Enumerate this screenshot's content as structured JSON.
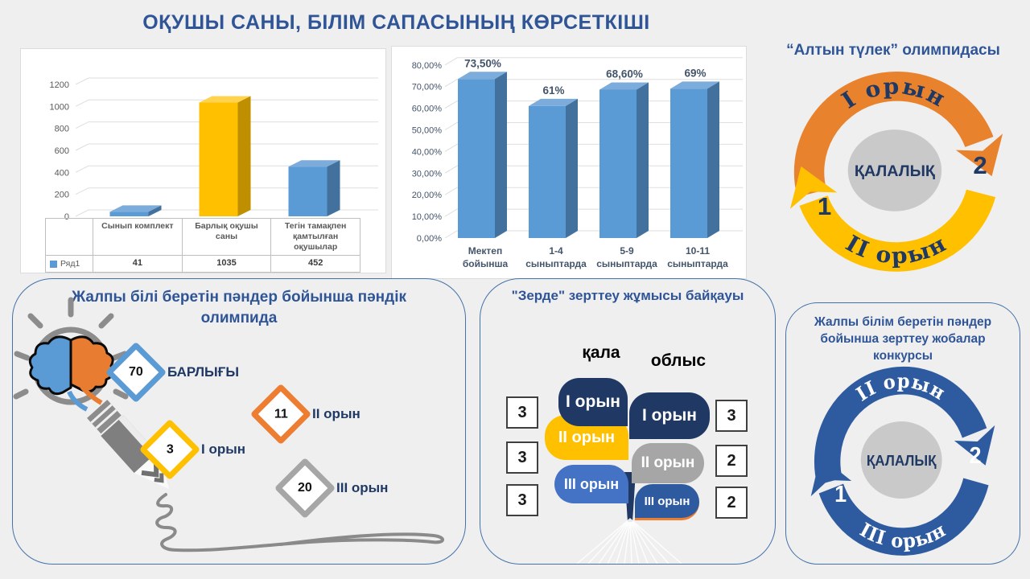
{
  "slide": {
    "title": "ОҚУШЫ САНЫ, БІЛІМ САПАСЫНЫҢ КӨРСЕТКІШІ",
    "background": "#EFEFF0",
    "title_color": "#2F5597",
    "accent_navy": "#1F3864"
  },
  "chart_data": [
    {
      "type": "bar",
      "title": "",
      "categories": [
        "Сынып комплект",
        "Барлық оқушы саны",
        "Тегін тамақпен қамтылған оқушылар"
      ],
      "values": [
        41,
        1035,
        452
      ],
      "series_name": "Ряд1",
      "legend_color": "#5B9BD5",
      "ylim": [
        0,
        1200
      ],
      "yticks": [
        0,
        200,
        400,
        600,
        800,
        1000,
        1200
      ],
      "grid": true,
      "effect": "3d",
      "data_table": true,
      "bar_colors": [
        {
          "front": "#5B9BD5",
          "side": "#41719C",
          "top": "#7CACDC"
        },
        {
          "front": "#FFC000",
          "side": "#BF8F00",
          "top": "#FFD34D"
        },
        {
          "front": "#5B9BD5",
          "side": "#41719C",
          "top": "#7CACDC"
        }
      ]
    },
    {
      "type": "bar",
      "title": "",
      "categories": [
        [
          "Мектеп",
          "бойынша"
        ],
        [
          "1-4",
          "сыныптарда"
        ],
        [
          "5-9",
          "сыныптарда"
        ],
        [
          "10-11",
          "сыныптарда"
        ]
      ],
      "values": [
        73.5,
        61,
        68.6,
        69
      ],
      "data_labels": [
        "73,50%",
        "61%",
        "68,60%",
        "69%"
      ],
      "ylim": [
        0,
        80
      ],
      "ytick_labels": [
        "0,00%",
        "10,00%",
        "20,00%",
        "30,00%",
        "40,00%",
        "50,00%",
        "60,00%",
        "70,00%",
        "80,00%"
      ],
      "grid": true,
      "effect": "3d",
      "bar_colors": [
        {
          "front": "#5B9BD5",
          "side": "#41719C",
          "top": "#7CACDC"
        }
      ]
    }
  ],
  "altyn_tulek": {
    "title": "“Алтын түлек” олимпидасы",
    "center_label": "ҚАЛАЛЫҚ",
    "center_color": "#C9C9C9",
    "arrows": [
      {
        "label": "I орын",
        "count": "2",
        "color": "#E8822D",
        "count_color": "#1F3864",
        "label_color": "#1F3864"
      },
      {
        "label": "II орын",
        "count": "1",
        "color": "#FFC000",
        "count_color": "#1F3864",
        "label_color": "#1F3864"
      }
    ]
  },
  "subject_olympiad": {
    "title": "Жалпы білі беретін пәндер бойынша пәндік олимпида",
    "items": [
      {
        "value": "70",
        "label": "БАРЛЫҒЫ",
        "color": "#5B9BD5"
      },
      {
        "value": "11",
        "label": "II орын",
        "color": "#ED7D31"
      },
      {
        "value": "3",
        "label": "I орын",
        "color": "#FFC000"
      },
      {
        "value": "20",
        "label": "III орын",
        "color": "#A6A6A6"
      }
    ]
  },
  "zerde": {
    "title": "\"Зерде\" зерттеу жұмысы байқауы",
    "columns": [
      {
        "header": "қала",
        "counts": [
          "3",
          "3",
          "3"
        ],
        "leaves": [
          {
            "label": "I орын",
            "color": "#1F3864"
          },
          {
            "label": "II орын",
            "color": "#FFC000"
          },
          {
            "label": "III орын",
            "color": "#4472C4"
          }
        ]
      },
      {
        "header": "облыс",
        "counts": [
          "3",
          "2",
          "2"
        ],
        "leaves": [
          {
            "label": "I орын",
            "color": "#1F3864"
          },
          {
            "label": "II орын",
            "color": "#A6A6A6"
          },
          {
            "label": "III орын",
            "color": "#2E5B9F"
          }
        ]
      }
    ]
  },
  "research_contest": {
    "title": "Жалпы білім беретін пәндер бойынша зерттеу жобалар конкурсы",
    "center_label": "ҚАЛАЛЫҚ",
    "center_color": "#C9C9C9",
    "arrows": [
      {
        "label": "II орын",
        "count": "2",
        "color": "#2E5B9F",
        "count_color": "#FFFFFF",
        "label_color": "#FFFFFF"
      },
      {
        "label": "III орын",
        "count": "1",
        "color": "#2E5B9F",
        "count_color": "#FFFFFF",
        "label_color": "#FFFFFF"
      }
    ]
  }
}
